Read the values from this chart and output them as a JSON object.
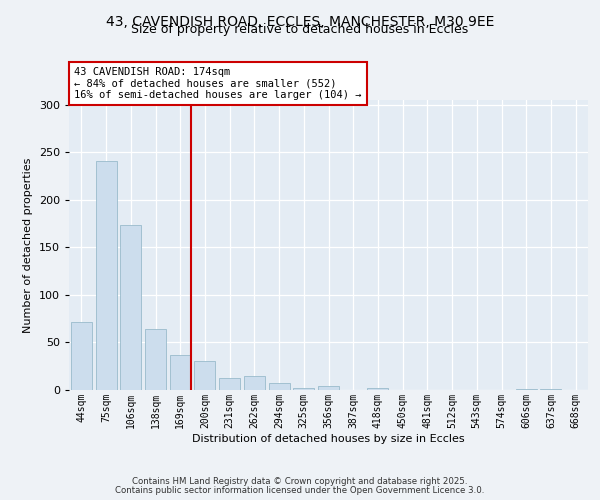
{
  "title_line1": "43, CAVENDISH ROAD, ECCLES, MANCHESTER, M30 9EE",
  "title_line2": "Size of property relative to detached houses in Eccles",
  "xlabel": "Distribution of detached houses by size in Eccles",
  "ylabel": "Number of detached properties",
  "bin_labels": [
    "44sqm",
    "75sqm",
    "106sqm",
    "138sqm",
    "169sqm",
    "200sqm",
    "231sqm",
    "262sqm",
    "294sqm",
    "325sqm",
    "356sqm",
    "387sqm",
    "418sqm",
    "450sqm",
    "481sqm",
    "512sqm",
    "543sqm",
    "574sqm",
    "606sqm",
    "637sqm",
    "668sqm"
  ],
  "bar_values": [
    72,
    241,
    174,
    64,
    37,
    30,
    13,
    15,
    7,
    2,
    4,
    0,
    2,
    0,
    0,
    0,
    0,
    0,
    1,
    1,
    0
  ],
  "bar_color": "#ccdded",
  "bar_edge_color": "#99bbcc",
  "red_line_color": "#cc0000",
  "red_line_bin": 4,
  "annotation_text": "43 CAVENDISH ROAD: 174sqm\n← 84% of detached houses are smaller (552)\n16% of semi-detached houses are larger (104) →",
  "annotation_box_facecolor": "#ffffff",
  "annotation_box_edgecolor": "#cc0000",
  "ylim": [
    0,
    305
  ],
  "yticks": [
    0,
    50,
    100,
    150,
    200,
    250,
    300
  ],
  "footer_line1": "Contains HM Land Registry data © Crown copyright and database right 2025.",
  "footer_line2": "Contains public sector information licensed under the Open Government Licence 3.0.",
  "bg_color": "#eef2f6",
  "plot_bg_color": "#e4ecf4",
  "title_fontsize": 10,
  "subtitle_fontsize": 9,
  "ylabel_fontsize": 8,
  "xlabel_fontsize": 8,
  "ytick_fontsize": 8,
  "xtick_fontsize": 7,
  "annotation_fontsize": 7.5
}
